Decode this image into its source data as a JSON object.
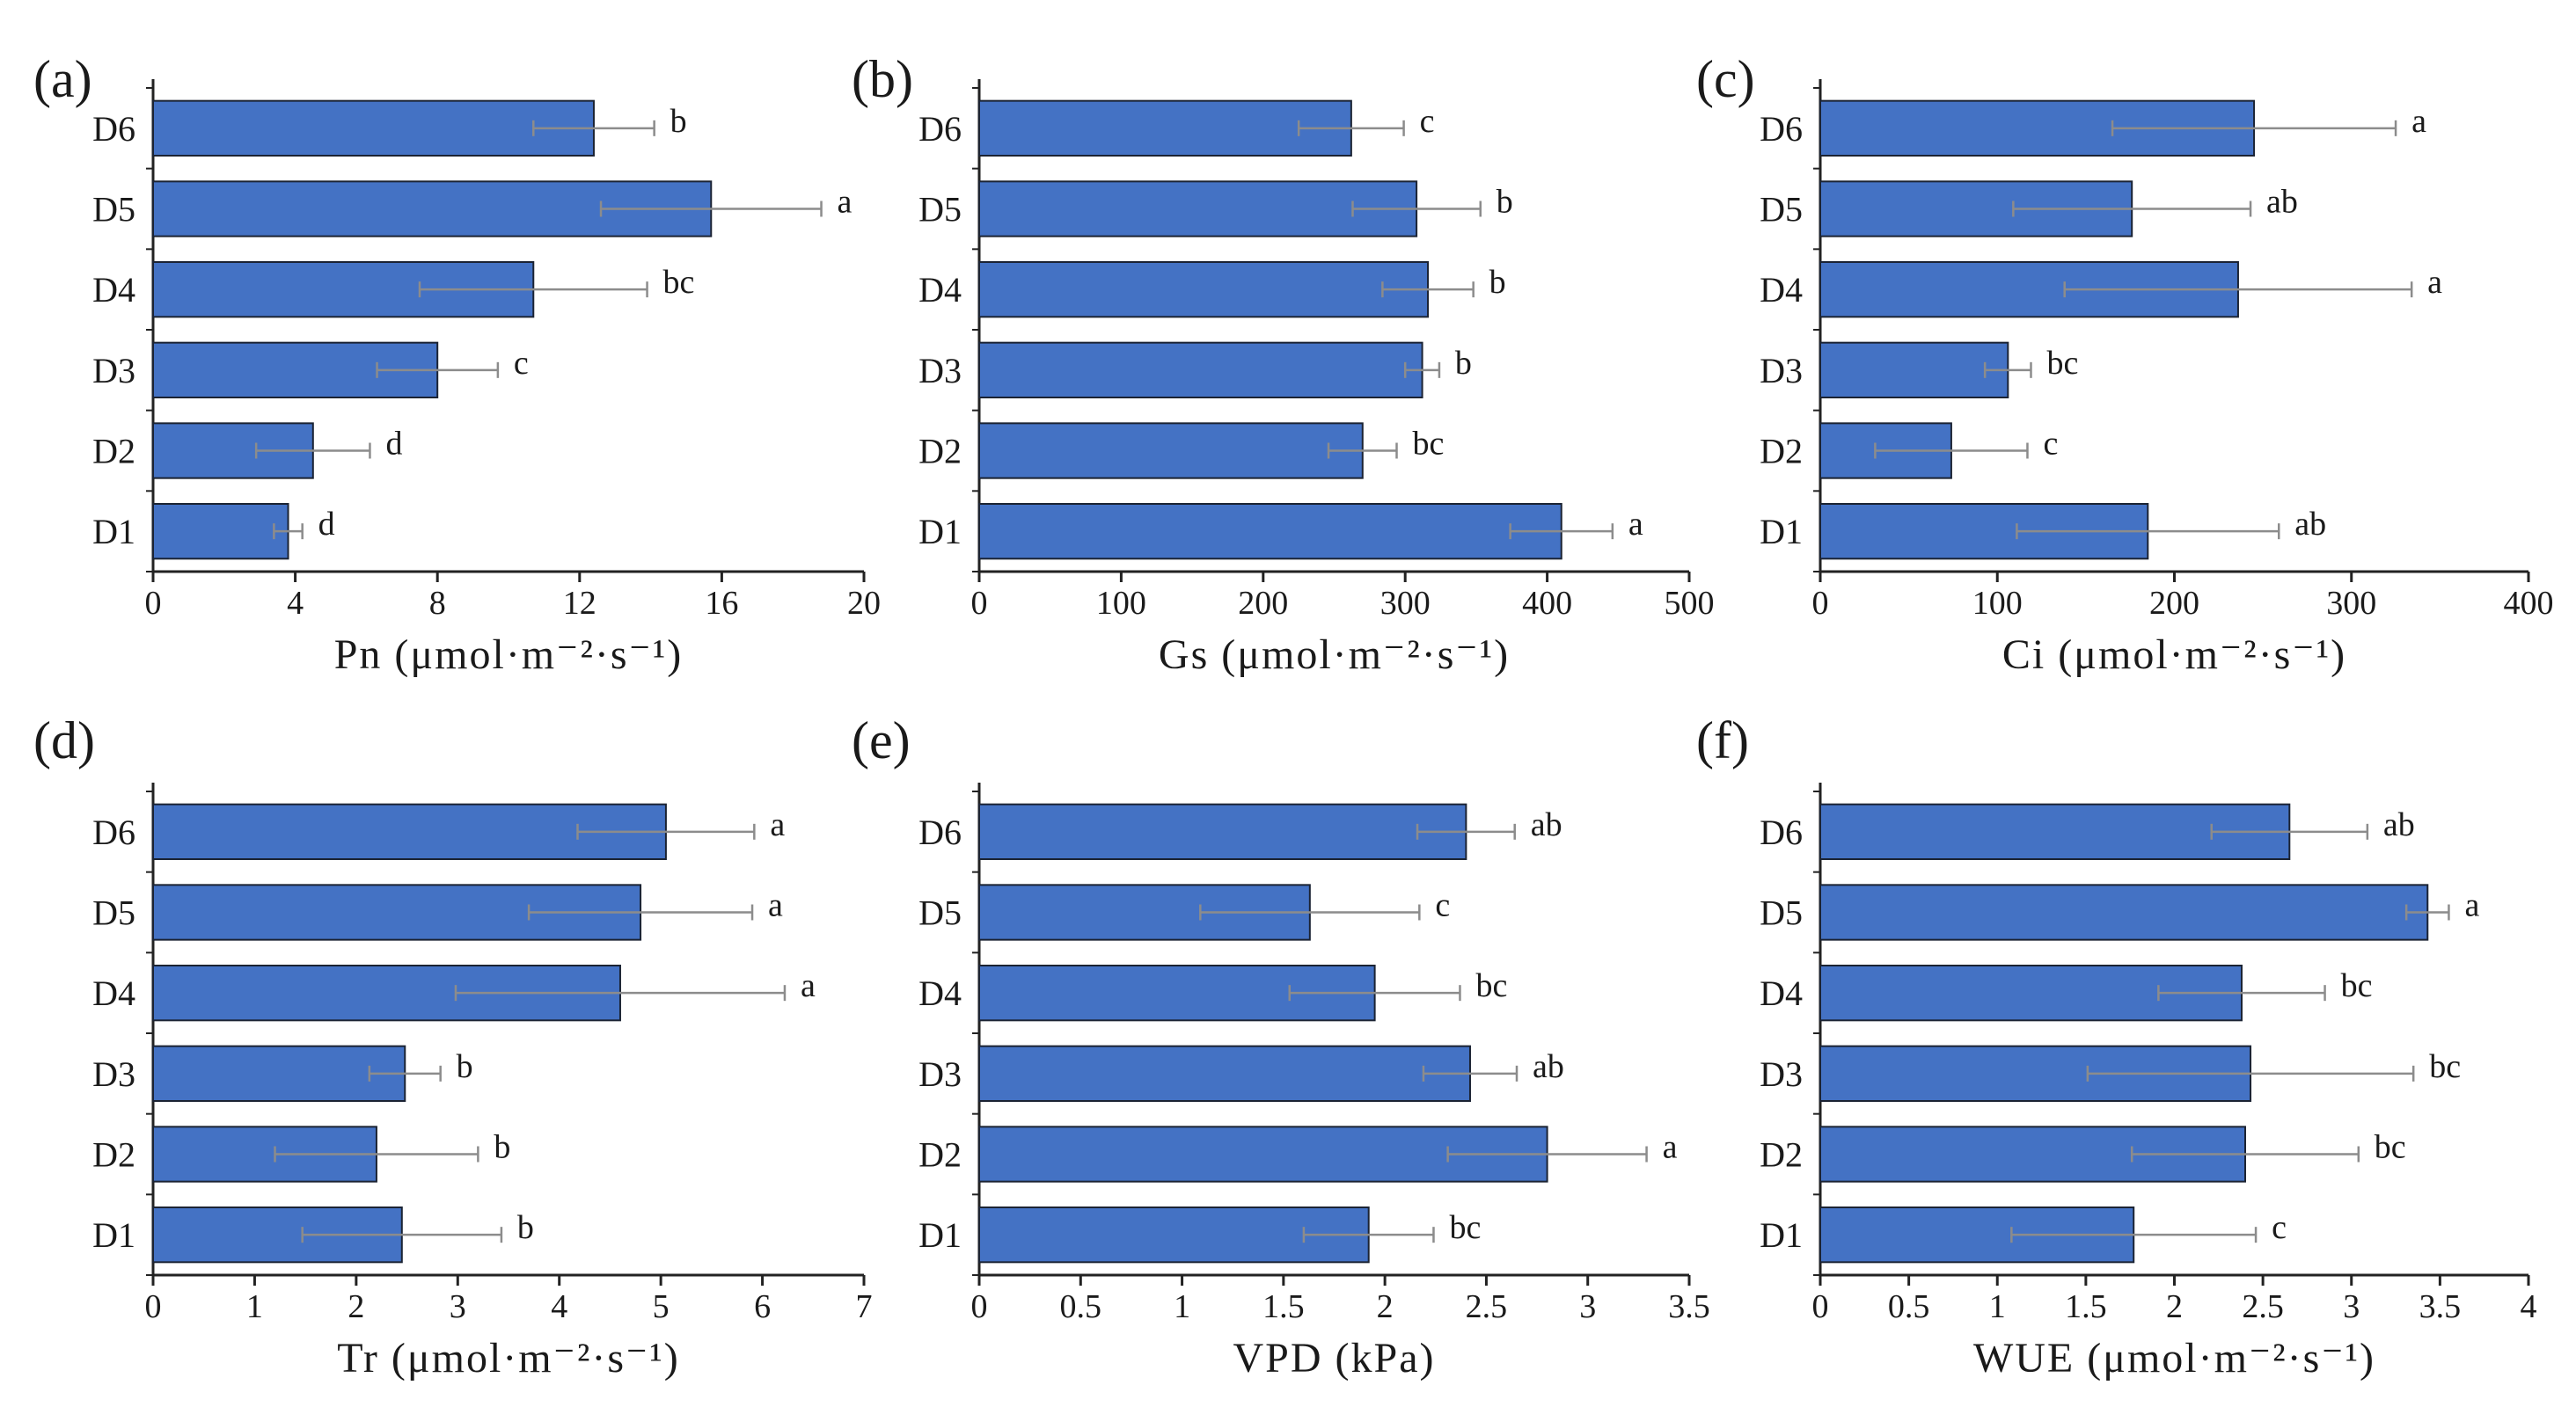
{
  "colors": {
    "bar_fill": "#4472C4",
    "bar_stroke": "#1b2333",
    "error_bar": "#8c8c8c",
    "axis": "#222222",
    "text": "#1a1a1a"
  },
  "chart_data": [
    {
      "panel": "(a)",
      "type": "bar",
      "orientation": "horizontal",
      "categories": [
        "D6",
        "D5",
        "D4",
        "D3",
        "D2",
        "D1"
      ],
      "values": [
        12.4,
        15.7,
        10.7,
        8.0,
        4.5,
        3.8
      ],
      "errors": [
        1.7,
        3.1,
        3.2,
        1.7,
        1.6,
        0.4
      ],
      "significance": [
        "b",
        "a",
        "bc",
        "c",
        "d",
        "d"
      ],
      "xlabel": "Pn (μmol·m⁻²·s⁻¹)",
      "xlim": [
        0,
        20
      ],
      "xticks": [
        0,
        4,
        8,
        12,
        16,
        20
      ],
      "xtick_labels": [
        "0",
        "4",
        "8",
        "12",
        "16",
        "20"
      ]
    },
    {
      "panel": "(b)",
      "type": "bar",
      "orientation": "horizontal",
      "categories": [
        "D6",
        "D5",
        "D4",
        "D3",
        "D2",
        "D1"
      ],
      "values": [
        262,
        308,
        316,
        312,
        270,
        410
      ],
      "errors": [
        37,
        45,
        32,
        12,
        24,
        36
      ],
      "significance": [
        "c",
        "b",
        "b",
        "b",
        "bc",
        "a"
      ],
      "xlabel": "Gs (μmol·m⁻²·s⁻¹)",
      "xlim": [
        0,
        500
      ],
      "xticks": [
        0,
        100,
        200,
        300,
        400,
        500
      ],
      "xtick_labels": [
        "0",
        "100",
        "200",
        "300",
        "400",
        "500"
      ]
    },
    {
      "panel": "(c)",
      "type": "bar",
      "orientation": "horizontal",
      "categories": [
        "D6",
        "D5",
        "D4",
        "D3",
        "D2",
        "D1"
      ],
      "values": [
        245,
        176,
        236,
        106,
        74,
        185
      ],
      "errors": [
        80,
        67,
        98,
        13,
        43,
        74
      ],
      "significance": [
        "a",
        "ab",
        "a",
        "bc",
        "c",
        "ab"
      ],
      "xlabel": "Ci (μmol·m⁻²·s⁻¹)",
      "xlim": [
        0,
        400
      ],
      "xticks": [
        0,
        100,
        200,
        300,
        400
      ],
      "xtick_labels": [
        "0",
        "100",
        "200",
        "300",
        "400"
      ]
    },
    {
      "panel": "(d)",
      "type": "bar",
      "orientation": "horizontal",
      "categories": [
        "D6",
        "D5",
        "D4",
        "D3",
        "D2",
        "D1"
      ],
      "values": [
        5.05,
        4.8,
        4.6,
        2.48,
        2.2,
        2.45
      ],
      "errors": [
        0.87,
        1.1,
        1.62,
        0.35,
        1.0,
        0.98
      ],
      "significance": [
        "a",
        "a",
        "a",
        "b",
        "b",
        "b"
      ],
      "xlabel": "Tr (μmol·m⁻²·s⁻¹)",
      "xlim": [
        0,
        7
      ],
      "xticks": [
        0,
        1,
        2,
        3,
        4,
        5,
        6,
        7
      ],
      "xtick_labels": [
        "0",
        "1",
        "2",
        "3",
        "4",
        "5",
        "6",
        "7"
      ]
    },
    {
      "panel": "(e)",
      "type": "bar",
      "orientation": "horizontal",
      "categories": [
        "D6",
        "D5",
        "D4",
        "D3",
        "D2",
        "D1"
      ],
      "values": [
        2.4,
        1.63,
        1.95,
        2.42,
        2.8,
        1.92
      ],
      "errors": [
        0.24,
        0.54,
        0.42,
        0.23,
        0.49,
        0.32
      ],
      "significance": [
        "ab",
        "c",
        "bc",
        "ab",
        "a",
        "bc"
      ],
      "xlabel": "VPD (kPa)",
      "xlim": [
        0,
        3.5
      ],
      "xticks": [
        0,
        0.5,
        1,
        1.5,
        2,
        2.5,
        3,
        3.5
      ],
      "xtick_labels": [
        "0",
        "0.5",
        "1",
        "1.5",
        "2",
        "2.5",
        "3",
        "3.5"
      ]
    },
    {
      "panel": "(f)",
      "type": "bar",
      "orientation": "horizontal",
      "categories": [
        "D6",
        "D5",
        "D4",
        "D3",
        "D2",
        "D1"
      ],
      "values": [
        2.65,
        3.43,
        2.38,
        2.43,
        2.4,
        1.77
      ],
      "errors": [
        0.44,
        0.12,
        0.47,
        0.92,
        0.64,
        0.69
      ],
      "significance": [
        "ab",
        "a",
        "bc",
        "bc",
        "bc",
        "c"
      ],
      "xlabel": "WUE (μmol·m⁻²·s⁻¹)",
      "xlim": [
        0,
        4
      ],
      "xticks": [
        0,
        0.5,
        1,
        1.5,
        2,
        2.5,
        3,
        3.5,
        4
      ],
      "xtick_labels": [
        "0",
        "0.5",
        "1",
        "1.5",
        "2",
        "2.5",
        "3",
        "3.5",
        "4"
      ]
    }
  ]
}
